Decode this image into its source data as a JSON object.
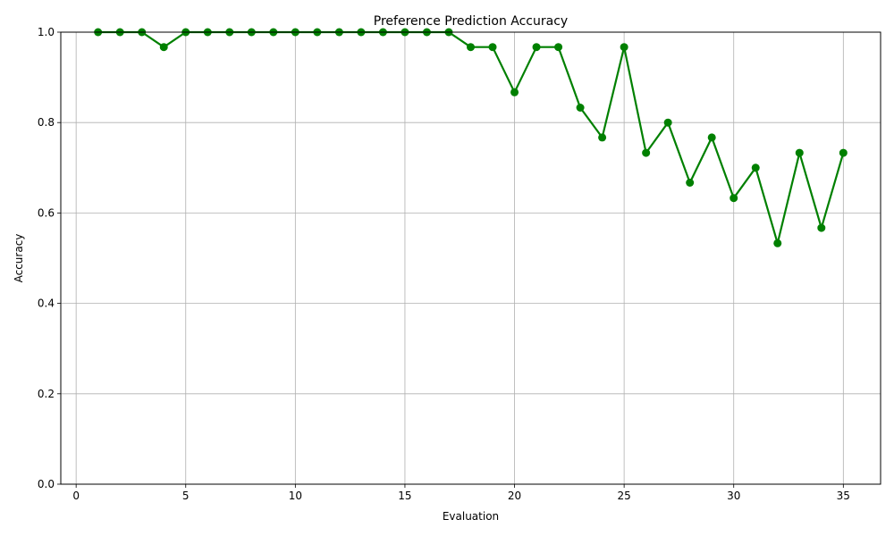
{
  "chart_data": {
    "type": "line",
    "title": "Preference Prediction Accuracy",
    "xlabel": "Evaluation",
    "ylabel": "Accuracy",
    "xlim": [
      -0.7,
      36.7
    ],
    "ylim": [
      0,
      1.0
    ],
    "xticks": [
      0,
      5,
      10,
      15,
      20,
      25,
      30,
      35
    ],
    "yticks": [
      0.0,
      0.2,
      0.4,
      0.6,
      0.8,
      1.0
    ],
    "xtick_labels": [
      "0",
      "5",
      "10",
      "15",
      "20",
      "25",
      "30",
      "35"
    ],
    "ytick_labels": [
      "0.0",
      "0.2",
      "0.4",
      "0.6",
      "0.8",
      "1.0"
    ],
    "grid": true,
    "series": [
      {
        "color": "#008000",
        "marker": "circle",
        "x": [
          1,
          2,
          3,
          4,
          5,
          6,
          7,
          8,
          9,
          10,
          11,
          12,
          13,
          14,
          15,
          16,
          17,
          18,
          19,
          20,
          21,
          22,
          23,
          24,
          25,
          26,
          27,
          28,
          29,
          30,
          31,
          32,
          33,
          34,
          35
        ],
        "values": [
          1.0,
          1.0,
          1.0,
          0.967,
          1.0,
          1.0,
          1.0,
          1.0,
          1.0,
          1.0,
          1.0,
          1.0,
          1.0,
          1.0,
          1.0,
          1.0,
          1.0,
          0.967,
          0.967,
          0.867,
          0.967,
          0.967,
          0.833,
          0.767,
          0.967,
          0.733,
          0.8,
          0.667,
          0.767,
          0.633,
          0.7,
          0.533,
          0.733,
          0.567,
          0.733
        ]
      }
    ]
  }
}
